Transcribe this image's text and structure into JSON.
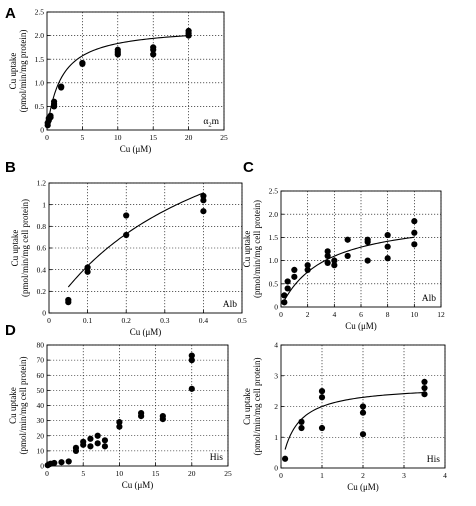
{
  "chart_data": [
    {
      "panel": "A",
      "type": "scatter",
      "xlabel": "Cu (μM)",
      "ylabel": "Cu uptake (pmol/min/mg protein)",
      "inset_label": "α",
      "inset_sub": "2",
      "inset_suffix": "m",
      "xlim": [
        0,
        25
      ],
      "ylim": [
        0,
        2.5
      ],
      "xticks": [
        0,
        5,
        10,
        15,
        20,
        25
      ],
      "yticks": [
        0,
        0.5,
        1,
        1.5,
        2,
        2.5
      ],
      "xtick_labels": [
        "0",
        "5",
        "10",
        "15",
        "20",
        "25"
      ],
      "ytick_labels": [
        "0",
        "0.5",
        "1.0",
        "1.5",
        "2.0",
        "2.5"
      ],
      "grid": true,
      "fit": {
        "model": "michaelis-menten",
        "vmax": 2.2,
        "km": 2.0
      },
      "points": [
        [
          0.1,
          0.1
        ],
        [
          0.1,
          0.15
        ],
        [
          0.25,
          0.2
        ],
        [
          0.25,
          0.25
        ],
        [
          0.5,
          0.27
        ],
        [
          0.5,
          0.3
        ],
        [
          1,
          0.5
        ],
        [
          1,
          0.55
        ],
        [
          1,
          0.6
        ],
        [
          2,
          0.9
        ],
        [
          2,
          0.92
        ],
        [
          5,
          1.4
        ],
        [
          5,
          1.42
        ],
        [
          10,
          1.6
        ],
        [
          10,
          1.65
        ],
        [
          10,
          1.7
        ],
        [
          15,
          1.6
        ],
        [
          15,
          1.7
        ],
        [
          15,
          1.75
        ],
        [
          20,
          2.0
        ],
        [
          20,
          2.05
        ],
        [
          20,
          2.1
        ]
      ]
    },
    {
      "panel": "B",
      "type": "scatter",
      "xlabel": "Cu (μM)",
      "ylabel": "Cu uptake (pmol/min/mg cell protein)",
      "inset_label": "Alb",
      "xlim": [
        0,
        0.5
      ],
      "ylim": [
        0,
        1.2
      ],
      "xticks": [
        0,
        0.1,
        0.2,
        0.3,
        0.4,
        0.5
      ],
      "yticks": [
        0,
        0.2,
        0.4,
        0.6,
        0.8,
        1,
        1.2
      ],
      "xtick_labels": [
        "0",
        "0.1",
        "0.2",
        "0.3",
        "0.4",
        "0.5"
      ],
      "ytick_labels": [
        "0",
        "0.2",
        "0.4",
        "0.6",
        "0.8",
        "1",
        "1.2"
      ],
      "grid": true,
      "fit": {
        "model": "michaelis-menten",
        "vmax": 2.3,
        "km": 0.43
      },
      "points": [
        [
          0.05,
          0.1
        ],
        [
          0.05,
          0.12
        ],
        [
          0.1,
          0.38
        ],
        [
          0.1,
          0.42
        ],
        [
          0.2,
          0.72
        ],
        [
          0.2,
          0.9
        ],
        [
          0.4,
          0.94
        ],
        [
          0.4,
          1.04
        ],
        [
          0.4,
          1.08
        ]
      ]
    },
    {
      "panel": "C",
      "type": "scatter",
      "xlabel": "Cu (μM)",
      "ylabel": "Cu uptake (pmol/min/mg cell protein)",
      "inset_label": "Alb",
      "xlim": [
        0,
        12
      ],
      "ylim": [
        0,
        2.5
      ],
      "xticks": [
        0,
        2,
        4,
        6,
        8,
        10,
        12
      ],
      "yticks": [
        0,
        0.5,
        1,
        1.5,
        2,
        2.5
      ],
      "xtick_labels": [
        "0",
        "2",
        "4",
        "6",
        "8",
        "10",
        "12"
      ],
      "ytick_labels": [
        "0",
        "0.5",
        "1.0",
        "1.5",
        "2.0",
        "2.5"
      ],
      "grid": true,
      "fit": {
        "model": "michaelis-menten",
        "vmax": 2.0,
        "km": 3.3
      },
      "points": [
        [
          0.25,
          0.1
        ],
        [
          0.25,
          0.25
        ],
        [
          0.5,
          0.4
        ],
        [
          0.5,
          0.55
        ],
        [
          1,
          0.65
        ],
        [
          1,
          0.8
        ],
        [
          2,
          0.8
        ],
        [
          2,
          0.9
        ],
        [
          3.5,
          0.95
        ],
        [
          3.5,
          1.1
        ],
        [
          3.5,
          1.2
        ],
        [
          4,
          0.9
        ],
        [
          4,
          1.0
        ],
        [
          5,
          1.1
        ],
        [
          5,
          1.45
        ],
        [
          6.5,
          1.0
        ],
        [
          6.5,
          1.4
        ],
        [
          6.5,
          1.45
        ],
        [
          8,
          1.05
        ],
        [
          8,
          1.3
        ],
        [
          8,
          1.55
        ],
        [
          10,
          1.35
        ],
        [
          10,
          1.6
        ],
        [
          10,
          1.85
        ]
      ]
    },
    {
      "panel": "D",
      "type": "scatter",
      "xlabel": "Cu (μM)",
      "ylabel": "Cu uptake (pmol/min/mg cell protein)",
      "inset_label": "His",
      "xlim": [
        0,
        25
      ],
      "ylim": [
        0,
        80
      ],
      "xticks": [
        0,
        5,
        10,
        15,
        20,
        25
      ],
      "yticks": [
        0,
        10,
        20,
        30,
        40,
        50,
        60,
        70,
        80
      ],
      "xtick_labels": [
        "0",
        "5",
        "10",
        "15",
        "20",
        "25"
      ],
      "ytick_labels": [
        "0",
        "10",
        "20",
        "30",
        "40",
        "50",
        "60",
        "70",
        "80"
      ],
      "grid": true,
      "points": [
        [
          0.1,
          0.5
        ],
        [
          0.25,
          1
        ],
        [
          0.5,
          1.5
        ],
        [
          1,
          2
        ],
        [
          2,
          2.5
        ],
        [
          3,
          3
        ],
        [
          4,
          10
        ],
        [
          4,
          12
        ],
        [
          5,
          14
        ],
        [
          5,
          16
        ],
        [
          6,
          18
        ],
        [
          6,
          13
        ],
        [
          7,
          20
        ],
        [
          7,
          15
        ],
        [
          8,
          17
        ],
        [
          8,
          13
        ],
        [
          10,
          26
        ],
        [
          10,
          29
        ],
        [
          13,
          33
        ],
        [
          13,
          35
        ],
        [
          16,
          31
        ],
        [
          16,
          33
        ],
        [
          20,
          51
        ],
        [
          20,
          70
        ],
        [
          20,
          73
        ]
      ]
    },
    {
      "panel": "",
      "type": "scatter",
      "xlabel": "Cu (μM)",
      "ylabel": "Cu uptake (pmol/min/mg cell protein)",
      "inset_label": "His",
      "xlim": [
        0,
        4
      ],
      "ylim": [
        0,
        4
      ],
      "xticks": [
        0,
        1,
        2,
        3,
        4
      ],
      "yticks": [
        0,
        1,
        2,
        3,
        4
      ],
      "xtick_labels": [
        "0",
        "1",
        "2",
        "3",
        "4"
      ],
      "ytick_labels": [
        "0",
        "1",
        "2",
        "3",
        "4"
      ],
      "grid": true,
      "fit": {
        "model": "michaelis-menten",
        "vmax": 2.7,
        "km": 0.35
      },
      "points": [
        [
          0.1,
          0.3
        ],
        [
          0.5,
          1.3
        ],
        [
          0.5,
          1.5
        ],
        [
          1,
          1.3
        ],
        [
          1,
          2.3
        ],
        [
          1,
          2.5
        ],
        [
          2,
          1.1
        ],
        [
          2,
          1.8
        ],
        [
          2,
          2.0
        ],
        [
          3.5,
          2.4
        ],
        [
          3.5,
          2.6
        ],
        [
          3.5,
          2.8
        ]
      ]
    }
  ]
}
